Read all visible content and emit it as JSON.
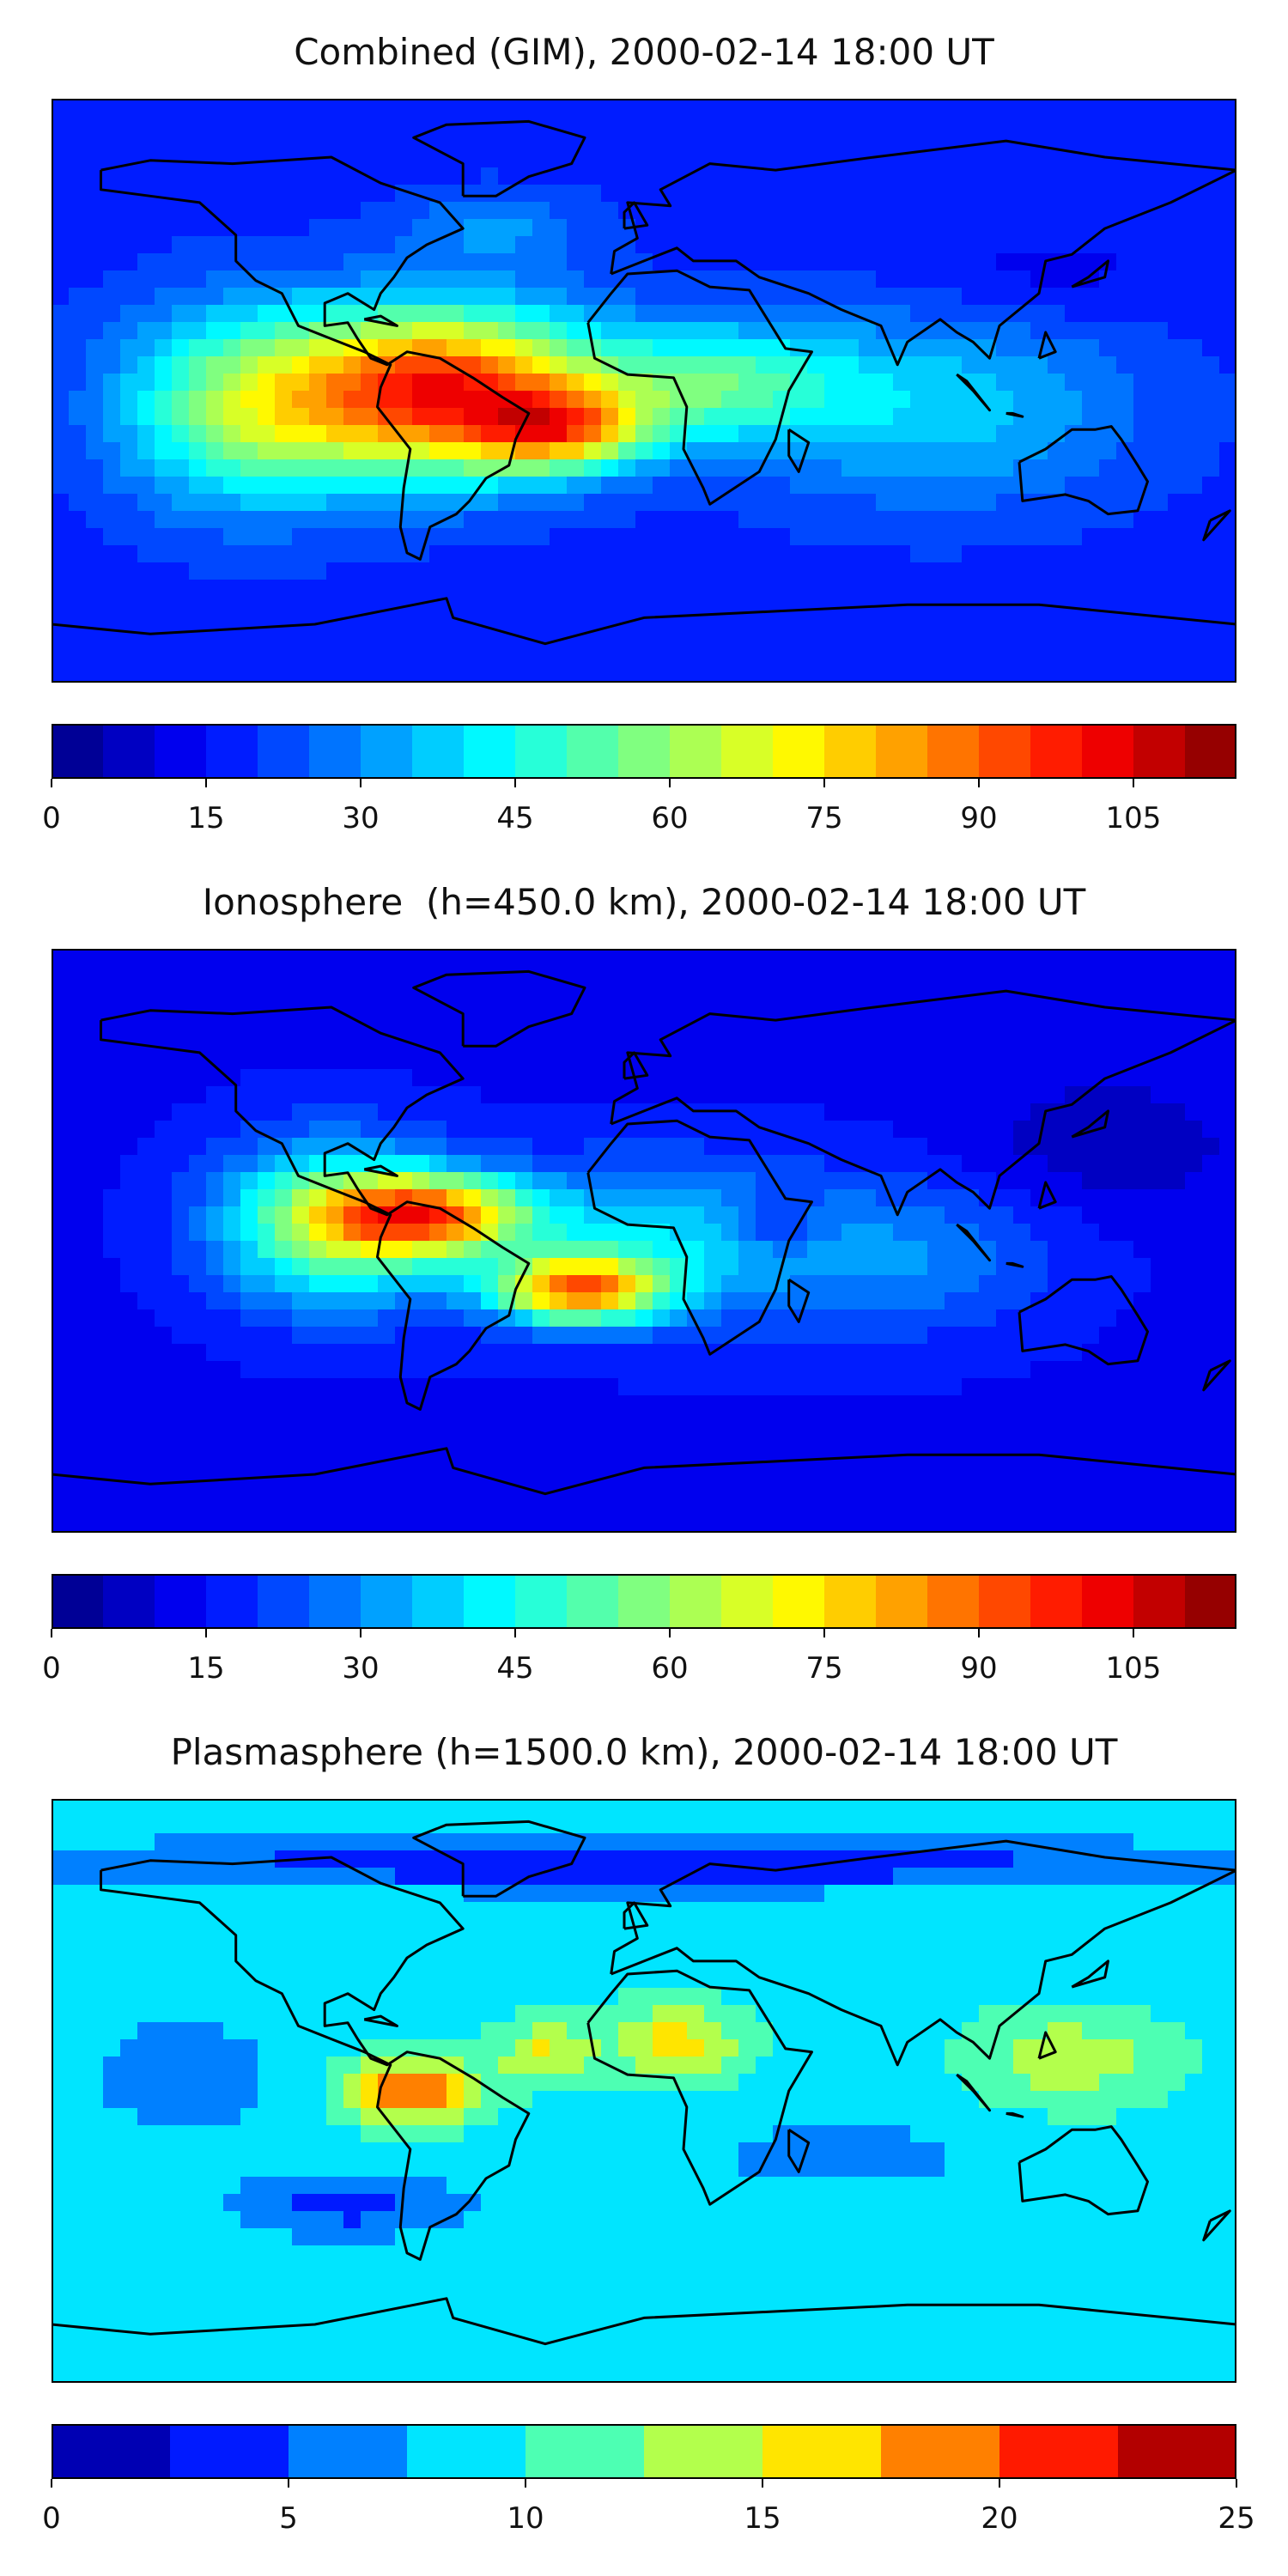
{
  "chart_data": [
    {
      "type": "heatmap",
      "title": "Combined (GIM), 2000-02-14 18:00 UT",
      "colorbar": {
        "min": 0,
        "max": 115,
        "step": 5,
        "ticks": [
          0,
          15,
          30,
          45,
          60,
          75,
          90,
          105
        ]
      },
      "max_region": "tropical South America and equatorial Atlantic",
      "peak_value_approx": 100
    },
    {
      "type": "heatmap",
      "title": "Ionosphere  (h=450.0 km), 2000-02-14 18:00 UT",
      "colorbar": {
        "min": 0,
        "max": 115,
        "step": 5,
        "ticks": [
          0,
          15,
          30,
          45,
          60,
          75,
          90,
          105
        ]
      },
      "max_region": "northern South America and South Atlantic",
      "peak_value_approx": 90
    },
    {
      "type": "heatmap",
      "title": "Plasmasphere (h=1500.0 km), 2000-02-14 18:00 UT",
      "colorbar": {
        "min": 0,
        "max": 25,
        "step": 2.5,
        "ticks": [
          0,
          5,
          10,
          15,
          20,
          25
        ]
      },
      "max_region": "northwestern South America",
      "peak_value_approx": 20
    }
  ]
}
